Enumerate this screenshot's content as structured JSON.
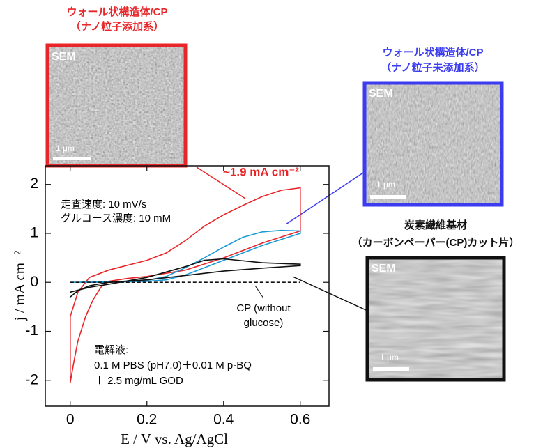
{
  "chart_data": {
    "type": "line",
    "x_label": "E / V vs. Ag/AgCl",
    "y_label": "j / mA cm⁻²",
    "xlim": [
      -0.065,
      0.675
    ],
    "ylim": [
      -2.53,
      2.38
    ],
    "xticks": [
      0,
      0.2,
      0.4,
      0.6
    ],
    "yticks": [
      -2,
      -1,
      0,
      1,
      2
    ],
    "series": [
      {
        "color": "#e8262a",
        "x": [
          0,
          0.01,
          0.02,
          0.04,
          0.06,
          0.08,
          0.1,
          0.15,
          0.2,
          0.3,
          0.4,
          0.5,
          0.6,
          0.6,
          0.55,
          0.5,
          0.45,
          0.4,
          0.35,
          0.3,
          0.25,
          0.2,
          0.15,
          0.1,
          0.05,
          0.02,
          0,
          0
        ],
        "values": [
          -2.05,
          -1.6,
          -1.2,
          -0.7,
          -0.35,
          -0.1,
          0.02,
          0.08,
          0.12,
          0.25,
          0.5,
          0.8,
          1.05,
          1.93,
          1.88,
          1.75,
          1.57,
          1.38,
          1.15,
          0.85,
          0.6,
          0.45,
          0.35,
          0.25,
          0.1,
          -0.2,
          -0.7,
          -2.05
        ]
      },
      {
        "color": "#1a9bd7",
        "x": [
          0,
          0.1,
          0.2,
          0.25,
          0.3,
          0.4,
          0.5,
          0.6,
          0.6,
          0.55,
          0.5,
          0.45,
          0.4,
          0.35,
          0.3,
          0.25,
          0.2,
          0.1,
          0
        ],
        "values": [
          0,
          0,
          0.02,
          0.05,
          0.15,
          0.45,
          0.75,
          1.0,
          1.05,
          1.06,
          1.03,
          0.92,
          0.72,
          0.5,
          0.3,
          0.12,
          0.04,
          0.01,
          0
        ]
      },
      {
        "color": "#111111",
        "x": [
          0,
          0.02,
          0.05,
          0.1,
          0.2,
          0.3,
          0.4,
          0.5,
          0.6,
          0.6,
          0.5,
          0.4,
          0.35,
          0.3,
          0.2,
          0.1,
          0.05,
          0
        ],
        "values": [
          -0.3,
          -0.17,
          -0.07,
          0,
          0.05,
          0.14,
          0.23,
          0.29,
          0.34,
          0.37,
          0.4,
          0.48,
          0.45,
          0.32,
          0.1,
          -0.04,
          -0.1,
          -0.2
        ]
      },
      {
        "color": "#111111",
        "dashed": true,
        "x": [
          0,
          0.6
        ],
        "values": [
          0,
          0
        ]
      }
    ],
    "annotations": {
      "peak": "~1.9 mA cm⁻²",
      "conditions": [
        "走査速度: 10 mV/s",
        "グルコース濃度: 10 mM"
      ],
      "cp": [
        "CP (without",
        "glucose)"
      ],
      "electrolyte": [
        "電解液:",
        "0.1 M PBS (pH7.0)＋0.01 M p-BQ",
        "＋ 2.5 mg/mL GOD"
      ]
    }
  },
  "images": [
    {
      "title": [
        "ウォール状構造体/CP",
        "（ナノ粒子添加系）"
      ],
      "label": "SEM",
      "scale": "1 μm"
    },
    {
      "title": [
        "ウォール状構造体/CP",
        "（ナノ粒子未添加系）"
      ],
      "label": "SEM",
      "scale": "1 μm"
    },
    {
      "title": [
        "炭素繊維基材",
        "（カーボンペーパー(CP)カット片）"
      ],
      "label": "SEM",
      "scale": "1 μm"
    }
  ]
}
